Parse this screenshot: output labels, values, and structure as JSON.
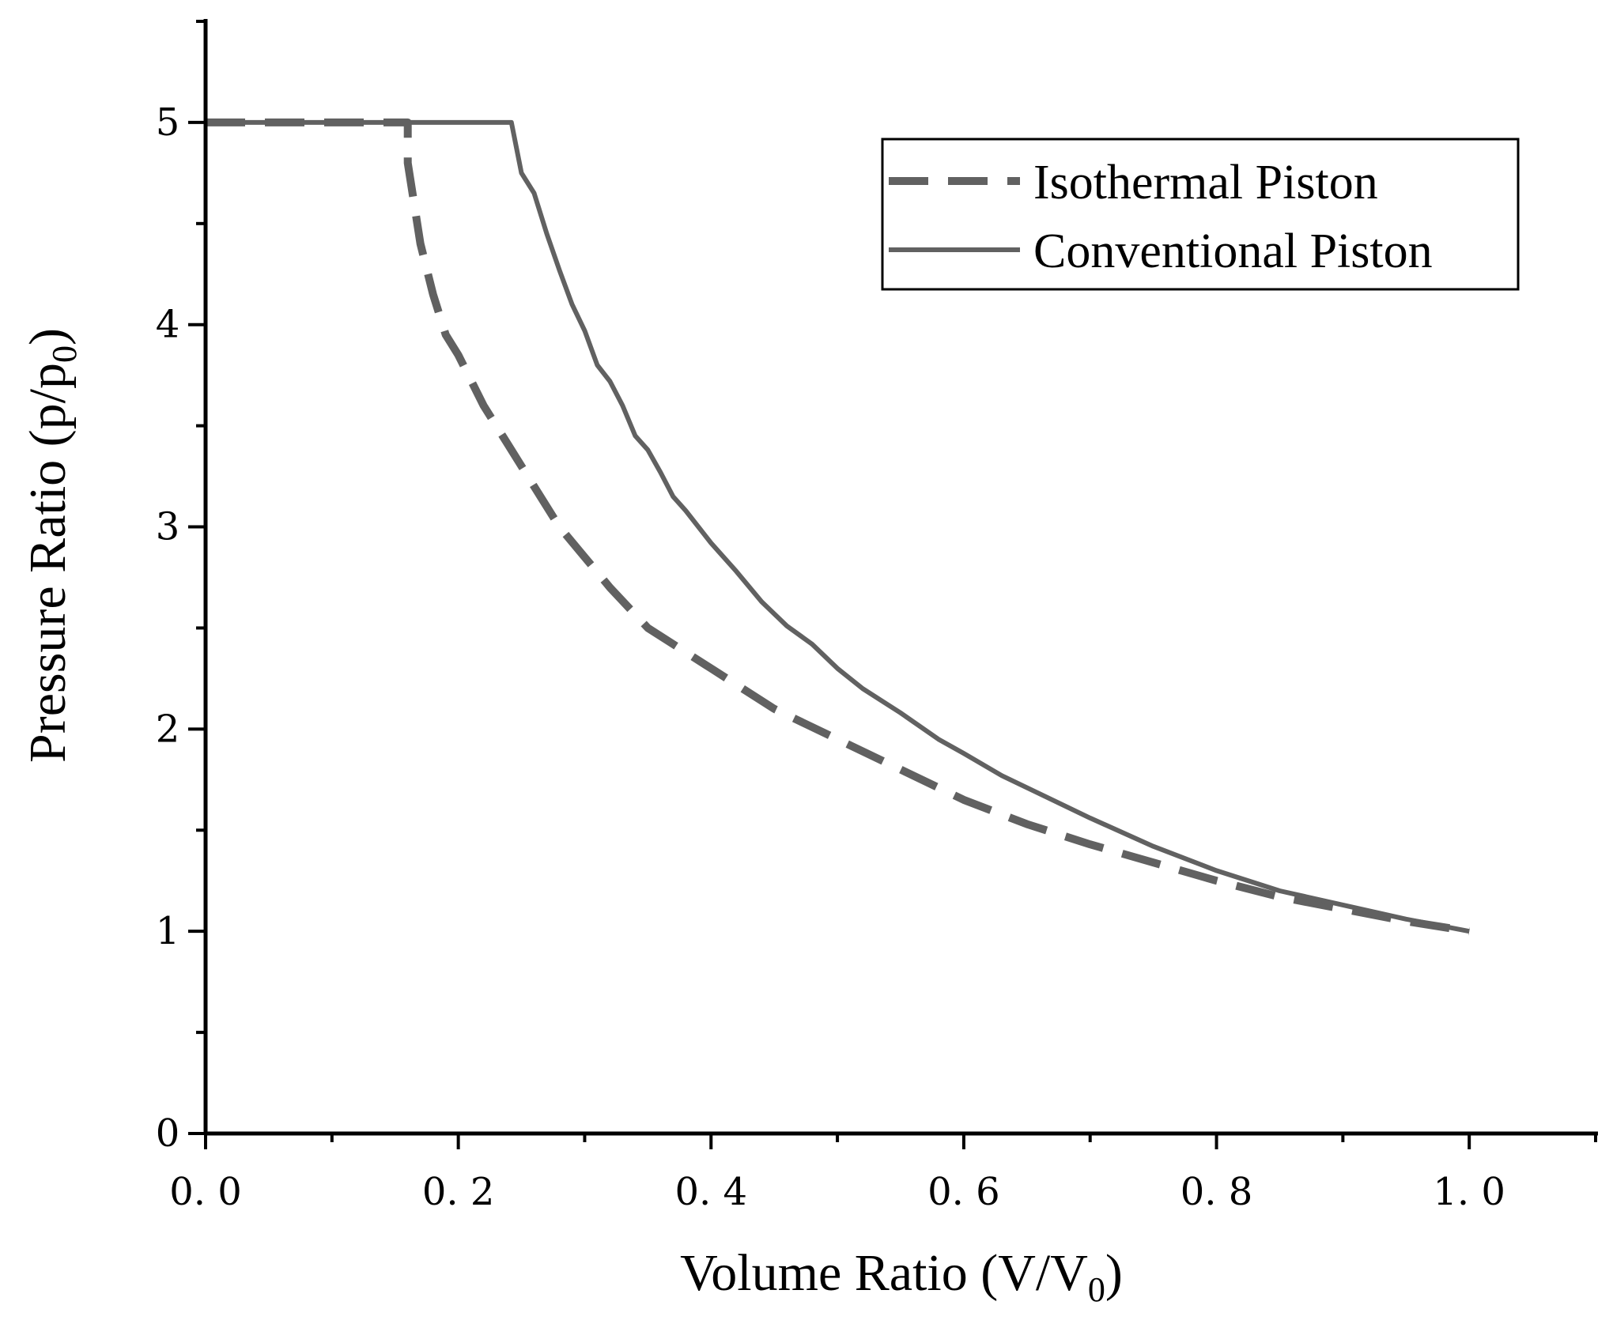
{
  "chart_data": {
    "type": "line",
    "title": "",
    "xlabel": "Volume Ratio (V/V0)",
    "xlabel_parts": {
      "main": "Volume Ratio (V/V",
      "sub": "0",
      "close": ")"
    },
    "ylabel": "Pressure Ratio (p/p0)",
    "ylabel_parts": {
      "main": "Pressure Ratio (p/p",
      "sub": "0",
      "close": ")"
    },
    "xlim": [
      0.0,
      1.1
    ],
    "ylim": [
      0,
      5.5
    ],
    "x_ticks": [
      0.0,
      0.2,
      0.4,
      0.6,
      0.8,
      1.0
    ],
    "x_tick_labels": [
      "0. 0",
      "0. 2",
      "0. 4",
      "0. 6",
      "0. 8",
      "1. 0"
    ],
    "x_minor_ticks": [
      0.1,
      0.3,
      0.5,
      0.7,
      0.9,
      1.1
    ],
    "y_ticks": [
      0,
      1,
      2,
      3,
      4,
      5
    ],
    "y_tick_labels": [
      "0",
      "1",
      "2",
      "3",
      "4",
      "5"
    ],
    "y_minor_ticks": [
      0.5,
      1.5,
      2.5,
      3.5,
      4.5,
      5.5
    ],
    "grid": false,
    "legend_position": "top-right",
    "color": "#616161",
    "series": [
      {
        "name": "Isothermal Piston",
        "style": "dashed",
        "points": [
          [
            0.0,
            5.0
          ],
          [
            0.16,
            5.0
          ],
          [
            0.16,
            4.8
          ],
          [
            0.165,
            4.6
          ],
          [
            0.17,
            4.4
          ],
          [
            0.18,
            4.15
          ],
          [
            0.19,
            3.95
          ],
          [
            0.2,
            3.85
          ],
          [
            0.22,
            3.6
          ],
          [
            0.24,
            3.4
          ],
          [
            0.26,
            3.2
          ],
          [
            0.28,
            3.0
          ],
          [
            0.3,
            2.85
          ],
          [
            0.32,
            2.7
          ],
          [
            0.35,
            2.5
          ],
          [
            0.4,
            2.3
          ],
          [
            0.45,
            2.1
          ],
          [
            0.5,
            1.95
          ],
          [
            0.55,
            1.8
          ],
          [
            0.6,
            1.65
          ],
          [
            0.65,
            1.53
          ],
          [
            0.7,
            1.43
          ],
          [
            0.75,
            1.34
          ],
          [
            0.8,
            1.25
          ],
          [
            0.85,
            1.17
          ],
          [
            0.9,
            1.11
          ],
          [
            0.95,
            1.05
          ],
          [
            1.0,
            1.0
          ]
        ]
      },
      {
        "name": "Conventional Piston",
        "style": "solid",
        "points": [
          [
            0.0,
            5.0
          ],
          [
            0.242,
            5.0
          ],
          [
            0.25,
            4.75
          ],
          [
            0.26,
            4.65
          ],
          [
            0.27,
            4.45
          ],
          [
            0.28,
            4.27
          ],
          [
            0.29,
            4.1
          ],
          [
            0.3,
            3.97
          ],
          [
            0.31,
            3.8
          ],
          [
            0.32,
            3.72
          ],
          [
            0.33,
            3.6
          ],
          [
            0.34,
            3.45
          ],
          [
            0.35,
            3.38
          ],
          [
            0.36,
            3.27
          ],
          [
            0.37,
            3.15
          ],
          [
            0.38,
            3.08
          ],
          [
            0.4,
            2.92
          ],
          [
            0.42,
            2.78
          ],
          [
            0.44,
            2.63
          ],
          [
            0.46,
            2.51
          ],
          [
            0.48,
            2.42
          ],
          [
            0.5,
            2.3
          ],
          [
            0.52,
            2.2
          ],
          [
            0.55,
            2.08
          ],
          [
            0.58,
            1.95
          ],
          [
            0.6,
            1.88
          ],
          [
            0.63,
            1.77
          ],
          [
            0.66,
            1.68
          ],
          [
            0.7,
            1.56
          ],
          [
            0.75,
            1.42
          ],
          [
            0.8,
            1.3
          ],
          [
            0.85,
            1.2
          ],
          [
            0.9,
            1.13
          ],
          [
            0.95,
            1.06
          ],
          [
            1.0,
            1.0
          ]
        ]
      }
    ]
  }
}
